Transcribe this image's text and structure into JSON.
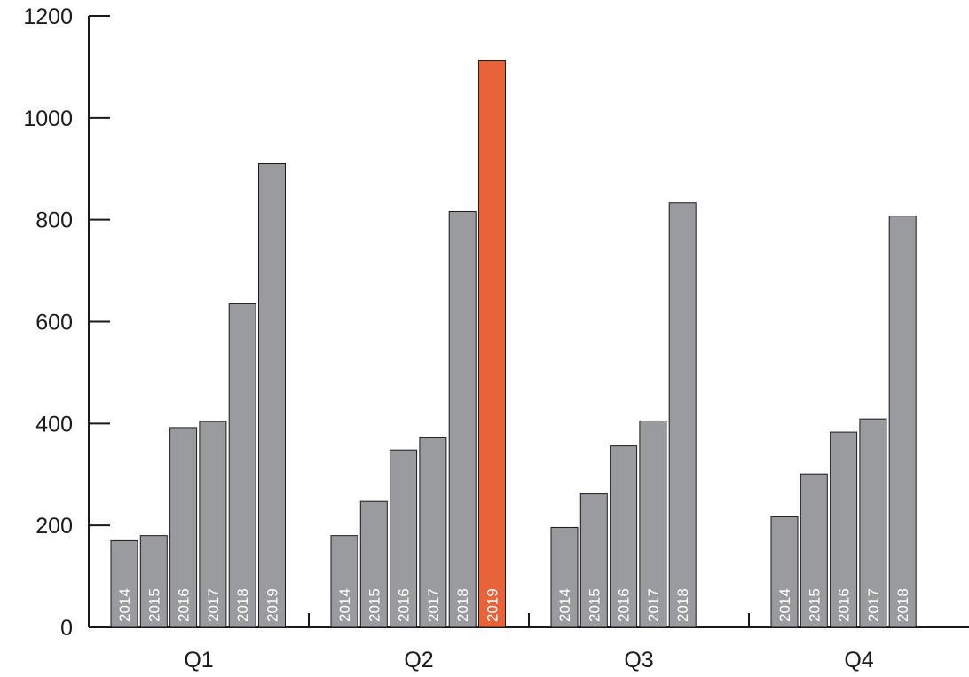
{
  "chart_data": {
    "type": "bar",
    "title": "",
    "xlabel": "",
    "ylabel": "",
    "ylim": [
      0,
      1200
    ],
    "yticks": [
      0,
      200,
      400,
      600,
      800,
      1000,
      1200
    ],
    "grid": false,
    "legend": "none",
    "colors": {
      "default": "#9a9b9e",
      "highlight": "#e8633a",
      "axis": "#1a1a1a"
    },
    "groups": [
      {
        "category": "Q1",
        "bars": [
          {
            "label": "2014",
            "value": 170
          },
          {
            "label": "2015",
            "value": 180
          },
          {
            "label": "2016",
            "value": 392
          },
          {
            "label": "2017",
            "value": 404
          },
          {
            "label": "2018",
            "value": 635
          },
          {
            "label": "2019",
            "value": 910
          }
        ]
      },
      {
        "category": "Q2",
        "bars": [
          {
            "label": "2014",
            "value": 180
          },
          {
            "label": "2015",
            "value": 247
          },
          {
            "label": "2016",
            "value": 348
          },
          {
            "label": "2017",
            "value": 372
          },
          {
            "label": "2018",
            "value": 816
          },
          {
            "label": "2019",
            "value": 1112,
            "highlight": true
          }
        ]
      },
      {
        "category": "Q3",
        "bars": [
          {
            "label": "2014",
            "value": 196
          },
          {
            "label": "2015",
            "value": 262
          },
          {
            "label": "2016",
            "value": 356
          },
          {
            "label": "2017",
            "value": 405
          },
          {
            "label": "2018",
            "value": 833
          }
        ]
      },
      {
        "category": "Q4",
        "bars": [
          {
            "label": "2014",
            "value": 217
          },
          {
            "label": "2015",
            "value": 301
          },
          {
            "label": "2016",
            "value": 383
          },
          {
            "label": "2017",
            "value": 409
          },
          {
            "label": "2018",
            "value": 807
          }
        ]
      }
    ]
  }
}
